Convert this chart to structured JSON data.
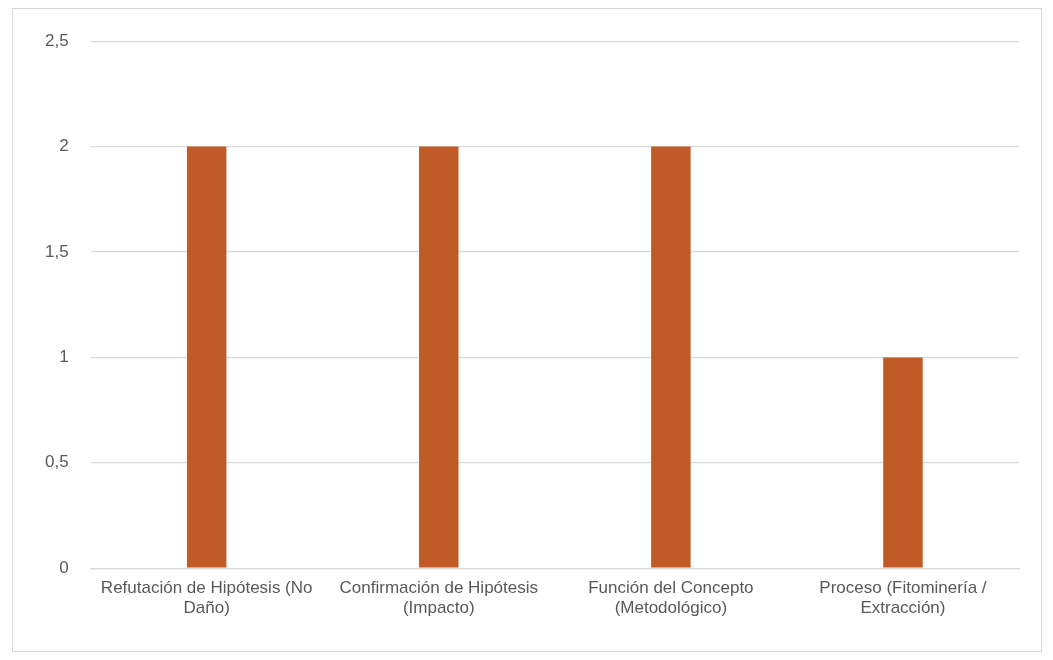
{
  "chart_data": {
    "type": "bar",
    "categories": [
      "Refutación de Hipótesis (No Daño)",
      "Confirmación de Hipótesis (Impacto)",
      "Función del Concepto (Metodológico)",
      "Proceso (Fitominería / Extracción)"
    ],
    "values": [
      2,
      2,
      2,
      1
    ],
    "color": "#c05a26",
    "ylim": [
      0,
      2.5
    ],
    "yticks": [
      0,
      {
        "value": 0.5,
        "label": "0,5"
      },
      1,
      {
        "value": 1.5,
        "label": "1,5"
      },
      2,
      {
        "value": 2.5,
        "label": "2,5"
      }
    ],
    "grid": "y",
    "legend": false
  }
}
